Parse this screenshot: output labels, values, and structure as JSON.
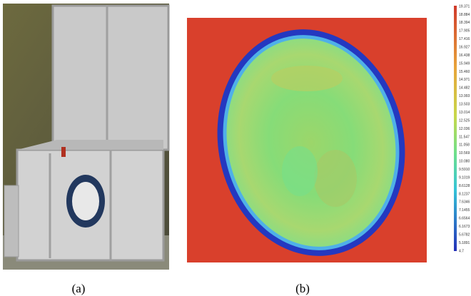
{
  "figure": {
    "panels": [
      {
        "label": "(a)"
      },
      {
        "label": "(b)",
        "colorbar": {
          "ticks": [
            "19.371",
            "18.884",
            "18.394",
            "17.905",
            "17.416",
            "16.927",
            "16.438",
            "15.949",
            "15.460",
            "14.971",
            "14.482",
            "13.993",
            "13.503",
            "13.014",
            "12.525",
            "12.036",
            "11.547",
            "11.058",
            "10.569",
            "10.080",
            "9.5910",
            "9.1019",
            "8.6128",
            "8.1237",
            "7.6346",
            "7.1455",
            "6.6564",
            "6.1673",
            "5.6782",
            "5.1891",
            "4.7"
          ]
        }
      }
    ]
  }
}
